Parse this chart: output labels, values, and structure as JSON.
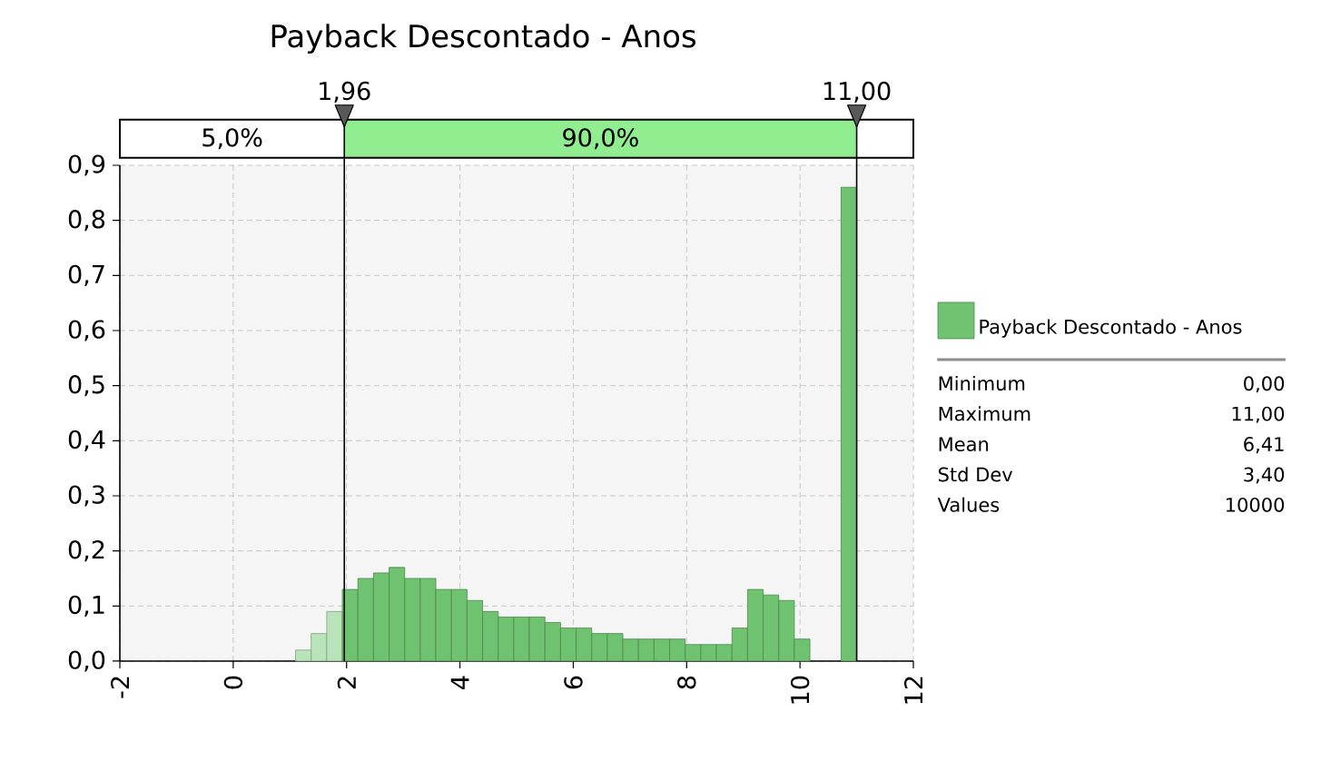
{
  "chart_data": {
    "type": "histogram",
    "title": "Payback Descontado - Anos",
    "bins": [
      0,
      0.275,
      0.55,
      0.825,
      1.1,
      1.375,
      1.65,
      1.925,
      2.2,
      2.475,
      2.75,
      3.025,
      3.3,
      3.575,
      3.85,
      4.125,
      4.4,
      4.675,
      4.95,
      5.225,
      5.5,
      5.775,
      6.05,
      6.325,
      6.6,
      6.875,
      7.15,
      7.425,
      7.7,
      7.975,
      8.25,
      8.525,
      8.8,
      9.075,
      9.35,
      9.625,
      9.9,
      10.175,
      10.45,
      10.725,
      11
    ],
    "series": [
      {
        "name": "Payback Descontado - Anos",
        "color": "#6fc26f",
        "values": [
          0,
          0,
          0,
          0,
          0.02,
          0.05,
          0.09,
          0.13,
          0.15,
          0.16,
          0.17,
          0.15,
          0.15,
          0.13,
          0.13,
          0.11,
          0.09,
          0.08,
          0.08,
          0.08,
          0.07,
          0.06,
          0.06,
          0.05,
          0.05,
          0.04,
          0.04,
          0.04,
          0.04,
          0.03,
          0.03,
          0.03,
          0.06,
          0.13,
          0.12,
          0.11,
          0.04,
          0,
          0,
          0.86
        ],
        "colors": [
          "#b9e3b9",
          "#b9e3b9",
          "#b9e3b9",
          "#b9e3b9",
          "#b9e3b9",
          "#b9e3b9",
          "#b9e3b9",
          "#6fc26f",
          "#6fc26f",
          "#6fc26f",
          "#6fc26f",
          "#6fc26f",
          "#6fc26f",
          "#6fc26f",
          "#6fc26f",
          "#6fc26f",
          "#6fc26f",
          "#6fc26f",
          "#6fc26f",
          "#6fc26f",
          "#6fc26f",
          "#6fc26f",
          "#6fc26f",
          "#6fc26f",
          "#6fc26f",
          "#6fc26f",
          "#6fc26f",
          "#6fc26f",
          "#6fc26f",
          "#6fc26f",
          "#6fc26f",
          "#6fc26f",
          "#6fc26f",
          "#6fc26f",
          "#6fc26f",
          "#6fc26f",
          "#6fc26f",
          "#6fc26f",
          "#6fc26f",
          "#6fc26f"
        ]
      }
    ],
    "xlim": [
      -2,
      12
    ],
    "xticks": [
      -2,
      0,
      2,
      4,
      6,
      8,
      10,
      12
    ],
    "ylim": [
      0,
      0.9
    ],
    "yticks": [
      {
        "value": 0,
        "label": "0,0"
      },
      {
        "value": 0.1,
        "label": "0,1"
      },
      {
        "value": 0.2,
        "label": "0,2"
      },
      {
        "value": 0.3,
        "label": "0,3"
      },
      {
        "value": 0.4,
        "label": "0,4"
      },
      {
        "value": 0.5,
        "label": "0,5"
      },
      {
        "value": 0.6,
        "label": "0,6"
      },
      {
        "value": 0.7,
        "label": "0,7"
      },
      {
        "value": 0.8,
        "label": "0,8"
      },
      {
        "value": 0.9,
        "label": "0,9"
      }
    ],
    "ref_lines": [
      {
        "axis": "x",
        "value": 1.96,
        "label": "1,96"
      },
      {
        "axis": "x",
        "value": 11,
        "label": "11,00"
      }
    ],
    "annotations": [
      "5,0%",
      "90,0%",
      "Minimum",
      "0,00",
      "Maximum",
      "11,00",
      "Mean",
      "6,41",
      "Std Dev",
      "3,40",
      "Values",
      "10000"
    ],
    "grid": true,
    "legend": "right"
  }
}
